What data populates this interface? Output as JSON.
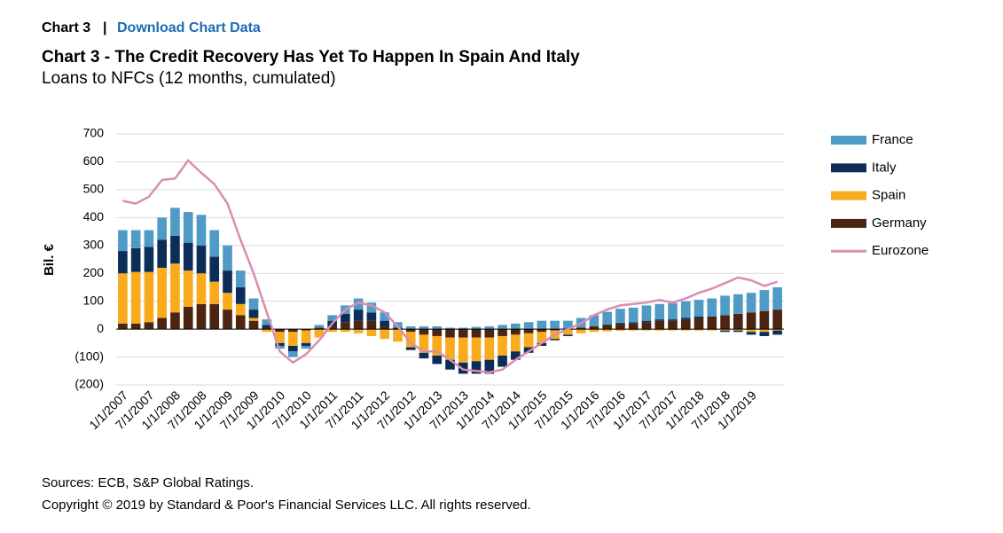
{
  "header": {
    "label": "Chart 3",
    "separator": "|",
    "link": "Download Chart Data"
  },
  "chart_data": {
    "type": "bar",
    "title": "Chart 3 - The Credit Recovery Has Yet To Happen In Spain And Italy",
    "subtitle": "Loans to NFCs (12 months, cumulated)",
    "y_label": "Bil. €",
    "categories": [
      "1/1/2007",
      null,
      "7/1/2007",
      null,
      "1/1/2008",
      null,
      "7/1/2008",
      null,
      "1/1/2009",
      null,
      "7/1/2009",
      null,
      "1/1/2010",
      null,
      "7/1/2010",
      null,
      "1/1/2011",
      null,
      "7/1/2011",
      null,
      "1/1/2012",
      null,
      "7/1/2012",
      null,
      "1/1/2013",
      null,
      "7/1/2013",
      null,
      "1/1/2014",
      null,
      "7/1/2014",
      null,
      "1/1/2015",
      null,
      "7/1/2015",
      null,
      "1/1/2016",
      null,
      "7/1/2016",
      null,
      "1/1/2017",
      null,
      "7/1/2017",
      null,
      "1/1/2018",
      null,
      "7/1/2018",
      null,
      "1/1/2019",
      null,
      null
    ],
    "series": [
      {
        "name": "France",
        "color": "#4f9bc6",
        "values": [
          75,
          65,
          60,
          80,
          100,
          110,
          110,
          95,
          90,
          60,
          40,
          20,
          -10,
          -20,
          -10,
          10,
          20,
          30,
          40,
          35,
          30,
          20,
          10,
          10,
          10,
          5,
          5,
          8,
          10,
          15,
          20,
          25,
          30,
          30,
          30,
          35,
          40,
          45,
          50,
          52,
          55,
          55,
          58,
          60,
          60,
          65,
          70,
          70,
          70,
          75,
          80
        ]
      },
      {
        "name": "Italy",
        "color": "#0b2d57",
        "values": [
          80,
          85,
          90,
          100,
          100,
          100,
          100,
          90,
          80,
          60,
          30,
          10,
          -10,
          -20,
          -10,
          0,
          20,
          30,
          40,
          30,
          20,
          5,
          -10,
          -20,
          -30,
          -35,
          -40,
          -45,
          -50,
          -40,
          -30,
          -20,
          -10,
          -5,
          -5,
          0,
          0,
          2,
          3,
          5,
          5,
          5,
          5,
          5,
          5,
          0,
          -5,
          -5,
          -10,
          -15,
          -15
        ]
      },
      {
        "name": "Spain",
        "color": "#f9ab1e",
        "values": [
          180,
          185,
          180,
          180,
          175,
          130,
          110,
          80,
          60,
          40,
          10,
          -10,
          -40,
          -50,
          -45,
          -30,
          -10,
          -10,
          -15,
          -25,
          -35,
          -45,
          -55,
          -65,
          -70,
          -80,
          -90,
          -85,
          -80,
          -70,
          -60,
          -50,
          -40,
          -30,
          -20,
          -15,
          -10,
          -8,
          -6,
          -5,
          -5,
          -5,
          -5,
          -5,
          -5,
          -5,
          -5,
          -5,
          -10,
          -10,
          -5
        ]
      },
      {
        "name": "Germany",
        "color": "#4b2512",
        "values": [
          20,
          20,
          25,
          40,
          60,
          80,
          90,
          90,
          70,
          50,
          30,
          5,
          -10,
          -10,
          -5,
          5,
          10,
          25,
          30,
          30,
          10,
          0,
          -10,
          -20,
          -25,
          -30,
          -30,
          -30,
          -30,
          -25,
          -20,
          -15,
          -10,
          -5,
          0,
          5,
          10,
          15,
          20,
          20,
          25,
          30,
          30,
          35,
          40,
          45,
          50,
          55,
          60,
          65,
          70
        ]
      },
      {
        "name": "Eurozone",
        "type": "line",
        "color": "#d98db1",
        "values": [
          460,
          450,
          475,
          535,
          540,
          605,
          560,
          520,
          450,
          320,
          200,
          60,
          -80,
          -120,
          -90,
          -40,
          20,
          70,
          95,
          85,
          60,
          10,
          -50,
          -80,
          -80,
          -110,
          -145,
          -150,
          -155,
          -145,
          -110,
          -80,
          -50,
          -20,
          0,
          20,
          50,
          70,
          85,
          90,
          95,
          105,
          95,
          110,
          130,
          145,
          165,
          185,
          175,
          155,
          170
        ]
      }
    ],
    "ylim": [
      -200,
      700
    ],
    "yticks": [
      {
        "value": -200,
        "label": "(200)"
      },
      {
        "value": -100,
        "label": "(100)"
      },
      0,
      100,
      200,
      300,
      400,
      500,
      600,
      700
    ],
    "grid": true,
    "legend": "right"
  },
  "footer": {
    "sources": "Sources: ECB, S&P Global Ratings.",
    "copyright": "Copyright © 2019 by Standard & Poor's Financial Services LLC. All rights reserved."
  }
}
